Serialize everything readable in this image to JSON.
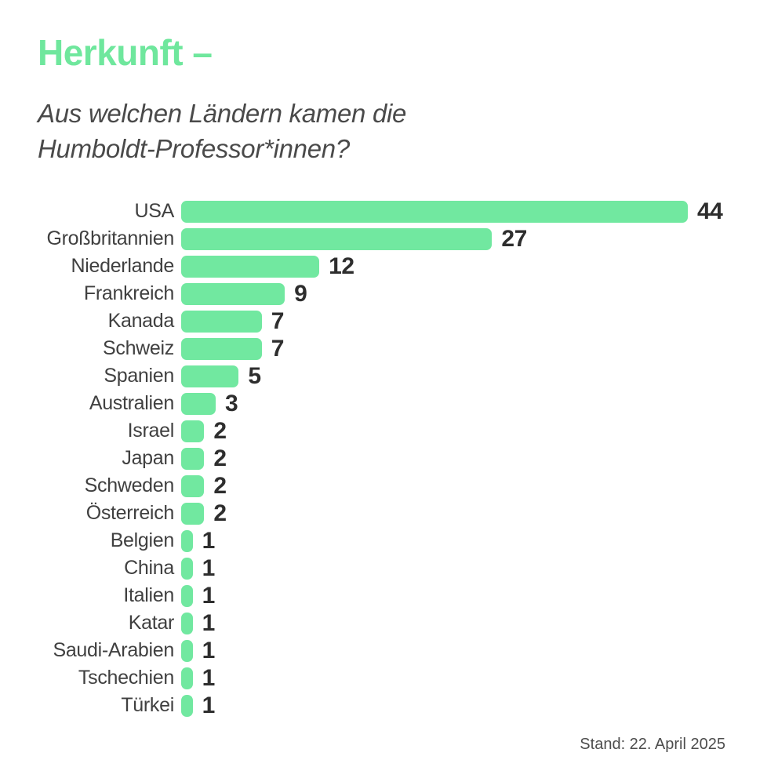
{
  "header": {
    "title": "Herkunft –",
    "subtitle_line1": "Aus welchen Ländern kamen die",
    "subtitle_line2": "Humboldt-Professor*innen?"
  },
  "footer": {
    "status": "Stand: 22. April 2025"
  },
  "colors": {
    "accent_green": "#6fe79d",
    "bar_green": "#71e8a0",
    "value_text": "#2e2e2e",
    "label_text": "#404040",
    "subtitle_text": "#4a4a4a",
    "footer_text": "#4d4d4d"
  },
  "chart_data": {
    "type": "bar",
    "orientation": "horizontal",
    "title": "Herkunft –",
    "subtitle": "Aus welchen Ländern kamen die Humboldt-Professor*innen?",
    "categories": [
      "USA",
      "Großbritannien",
      "Niederlande",
      "Frankreich",
      "Kanada",
      "Schweiz",
      "Spanien",
      "Australien",
      "Israel",
      "Japan",
      "Schweden",
      "Österreich",
      "Belgien",
      "China",
      "Italien",
      "Katar",
      "Saudi-Arabien",
      "Tschechien",
      "Türkei"
    ],
    "values": [
      44,
      27,
      12,
      9,
      7,
      7,
      5,
      3,
      2,
      2,
      2,
      2,
      1,
      1,
      1,
      1,
      1,
      1,
      1
    ],
    "xlim": [
      0,
      44
    ],
    "value_labels_shown": true,
    "grid": false,
    "legend": false
  }
}
